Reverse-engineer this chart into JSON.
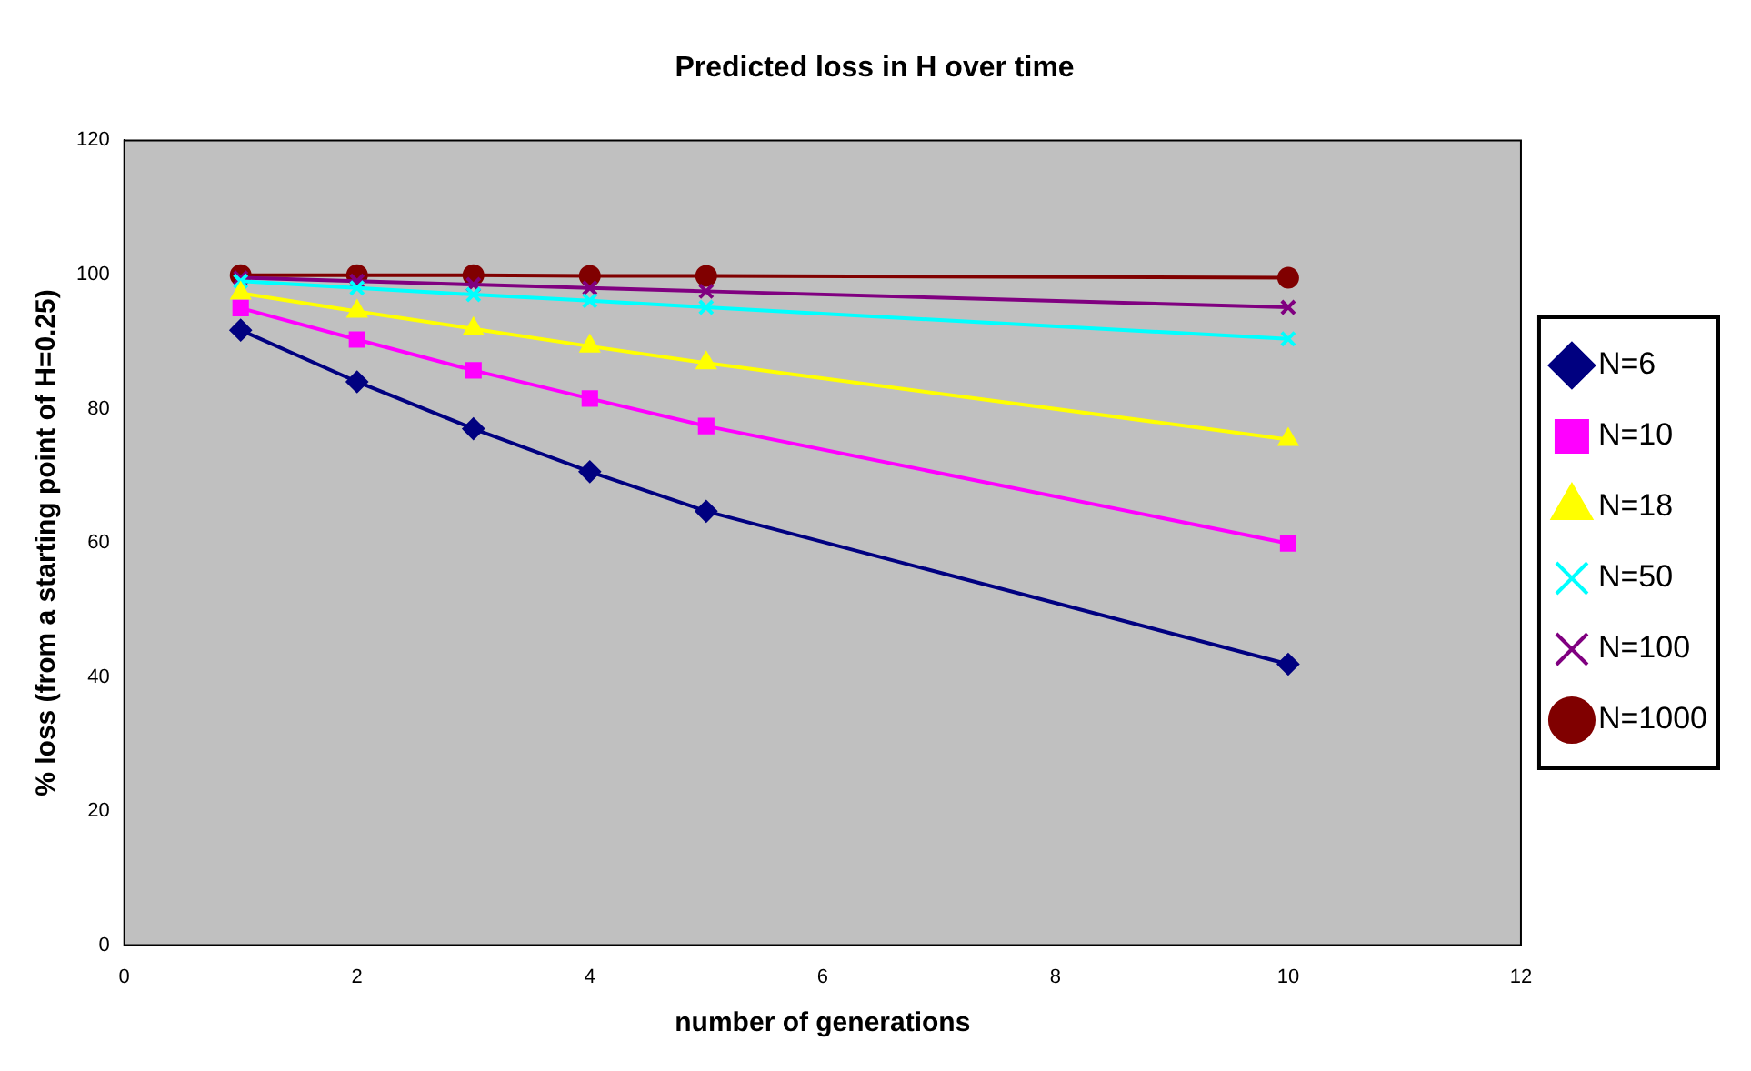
{
  "chart_data": {
    "type": "line",
    "title": "Predicted loss in H over time",
    "xlabel": "number of generations",
    "ylabel": "% loss (from a starting point of H=0.25)",
    "x": [
      1,
      2,
      3,
      4,
      5,
      10
    ],
    "series": [
      {
        "name": "N=6",
        "color": "#000080",
        "marker": "diamond",
        "values": [
          91.7,
          84.0,
          77.0,
          70.6,
          64.7,
          41.9
        ]
      },
      {
        "name": "N=10",
        "color": "#ff00ff",
        "marker": "square",
        "values": [
          95.0,
          90.3,
          85.7,
          81.5,
          77.4,
          59.9
        ]
      },
      {
        "name": "N=18",
        "color": "#ffff00",
        "marker": "triangle",
        "values": [
          97.2,
          94.5,
          91.9,
          89.3,
          86.8,
          75.4
        ]
      },
      {
        "name": "N=50",
        "color": "#00ffff",
        "marker": "cross",
        "values": [
          99.0,
          98.0,
          97.0,
          96.1,
          95.1,
          90.4
        ]
      },
      {
        "name": "N=100",
        "color": "#800080",
        "marker": "cross",
        "values": [
          99.5,
          99.0,
          98.5,
          98.0,
          97.5,
          95.1
        ]
      },
      {
        "name": "N=1000",
        "color": "#800000",
        "marker": "circle",
        "values": [
          99.9,
          99.9,
          99.9,
          99.8,
          99.8,
          99.5
        ]
      }
    ],
    "xlim": [
      0,
      12
    ],
    "xticks": [
      0,
      2,
      4,
      6,
      8,
      10,
      12
    ],
    "ylim": [
      0,
      120
    ],
    "yticks": [
      0,
      20,
      40,
      60,
      80,
      100,
      120
    ],
    "grid": false,
    "legend": "right",
    "line_style": "solid"
  }
}
